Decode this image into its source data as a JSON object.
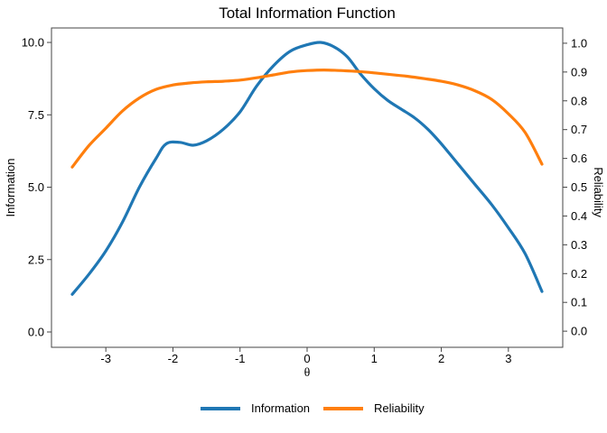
{
  "chart_data": {
    "type": "line",
    "title": "Total Information Function",
    "xlabel": "θ",
    "grid": false,
    "legend_position": "bottom",
    "frame_color": "#454545",
    "x": {
      "tick_labels": [
        "-3",
        "-2",
        "-1",
        "0",
        "1",
        "2",
        "3"
      ],
      "tick_values": [
        -3,
        -2,
        -1,
        0,
        1,
        2,
        3
      ],
      "range": [
        -3.81,
        3.81
      ]
    },
    "y_left": {
      "label": "Information",
      "tick_labels": [
        "0.0",
        "2.5",
        "5.0",
        "7.5",
        "10.0"
      ],
      "tick_values": [
        0,
        2.5,
        5,
        7.5,
        10
      ],
      "range": [
        -0.53,
        10.5
      ]
    },
    "y_right": {
      "label": "Reliability",
      "tick_labels": [
        "0.0",
        "0.1",
        "0.2",
        "0.3",
        "0.4",
        "0.5",
        "0.6",
        "0.7",
        "0.8",
        "0.9",
        "1.0"
      ],
      "tick_values": [
        0,
        0.1,
        0.2,
        0.3,
        0.4,
        0.5,
        0.6,
        0.7,
        0.8,
        0.9,
        1.0
      ],
      "range": [
        -0.056,
        1.053
      ]
    },
    "series": [
      {
        "name": "Information",
        "color": "#1F77B4",
        "axis": "left",
        "points": [
          [
            -3.5,
            1.3
          ],
          [
            -3.25,
            2.0
          ],
          [
            -3.0,
            2.8
          ],
          [
            -2.75,
            3.8
          ],
          [
            -2.5,
            5.0
          ],
          [
            -2.25,
            6.0
          ],
          [
            -2.1,
            6.5
          ],
          [
            -1.9,
            6.55
          ],
          [
            -1.7,
            6.45
          ],
          [
            -1.5,
            6.6
          ],
          [
            -1.25,
            7.0
          ],
          [
            -1.0,
            7.6
          ],
          [
            -0.75,
            8.5
          ],
          [
            -0.5,
            9.2
          ],
          [
            -0.25,
            9.7
          ],
          [
            0.0,
            9.92
          ],
          [
            0.2,
            10.0
          ],
          [
            0.4,
            9.85
          ],
          [
            0.6,
            9.5
          ],
          [
            0.8,
            8.9
          ],
          [
            1.0,
            8.4
          ],
          [
            1.2,
            8.0
          ],
          [
            1.4,
            7.7
          ],
          [
            1.6,
            7.4
          ],
          [
            1.8,
            7.0
          ],
          [
            2.0,
            6.5
          ],
          [
            2.25,
            5.8
          ],
          [
            2.5,
            5.1
          ],
          [
            2.75,
            4.4
          ],
          [
            3.0,
            3.6
          ],
          [
            3.25,
            2.7
          ],
          [
            3.5,
            1.4
          ]
        ]
      },
      {
        "name": "Reliability",
        "color": "#FF7F0E",
        "axis": "right",
        "points": [
          [
            -3.5,
            0.57
          ],
          [
            -3.25,
            0.645
          ],
          [
            -3.0,
            0.705
          ],
          [
            -2.75,
            0.765
          ],
          [
            -2.5,
            0.81
          ],
          [
            -2.25,
            0.84
          ],
          [
            -2.0,
            0.855
          ],
          [
            -1.75,
            0.862
          ],
          [
            -1.5,
            0.866
          ],
          [
            -1.25,
            0.868
          ],
          [
            -1.0,
            0.872
          ],
          [
            -0.75,
            0.88
          ],
          [
            -0.5,
            0.89
          ],
          [
            -0.25,
            0.9
          ],
          [
            0.0,
            0.905
          ],
          [
            0.25,
            0.907
          ],
          [
            0.5,
            0.905
          ],
          [
            0.75,
            0.902
          ],
          [
            1.0,
            0.897
          ],
          [
            1.25,
            0.891
          ],
          [
            1.5,
            0.885
          ],
          [
            1.75,
            0.877
          ],
          [
            2.0,
            0.868
          ],
          [
            2.25,
            0.855
          ],
          [
            2.5,
            0.835
          ],
          [
            2.75,
            0.805
          ],
          [
            3.0,
            0.755
          ],
          [
            3.25,
            0.69
          ],
          [
            3.5,
            0.58
          ]
        ]
      }
    ]
  }
}
